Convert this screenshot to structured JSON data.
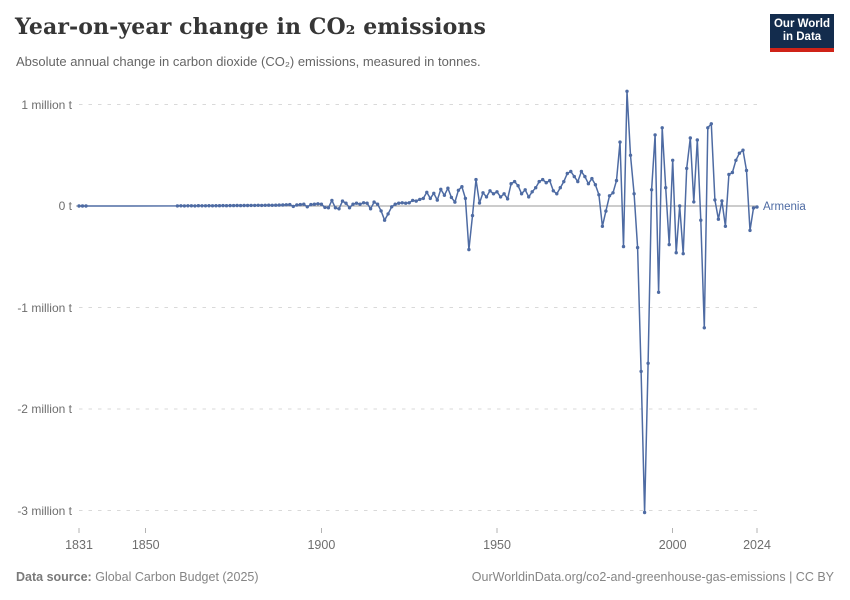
{
  "header": {
    "title": "Year-on-year change in CO₂ emissions",
    "subtitle": "Absolute annual change in carbon dioxide (CO₂) emissions, measured in tonnes.",
    "logo": {
      "line1": "Our World",
      "line2": "in Data",
      "bg_color": "#132C4D",
      "bar_color": "#CF2318"
    }
  },
  "footer": {
    "source_label": "Data source:",
    "source_text": "Global Carbon Budget (2025)",
    "link_text": "OurWorldinData.org/co2-and-greenhouse-gas-emissions | CC BY"
  },
  "chart_data": {
    "type": "line",
    "title": "Year-on-year change in CO₂ emissions",
    "unit": "million tonnes",
    "entity": "Armenia",
    "xlabel": "",
    "ylabel": "",
    "xlim": [
      1831,
      2024
    ],
    "ylim": [
      -3.2,
      1.2
    ],
    "grid": true,
    "legend_position": "end-of-line",
    "colors": {
      "line": "#4e6ba3",
      "gridline": "#d9d9d9",
      "zero_line": "#9a9a9a",
      "tick": "#b3b3b3",
      "axis_text": "#6e6e6e"
    },
    "y_axis": {
      "ticks": [
        {
          "value": 1,
          "label": "1 million t"
        },
        {
          "value": 0,
          "label": "0 t"
        },
        {
          "value": -1,
          "label": "-1 million t"
        },
        {
          "value": -2,
          "label": "-2 million t"
        },
        {
          "value": -3,
          "label": "-3 million t"
        }
      ]
    },
    "x_axis": {
      "ticks": [
        {
          "year": 1831,
          "label": "1831"
        },
        {
          "year": 1850,
          "label": "1850"
        },
        {
          "year": 1900,
          "label": "1900"
        },
        {
          "year": 1950,
          "label": "1950"
        },
        {
          "year": 2000,
          "label": "2000"
        },
        {
          "year": 2024,
          "label": "2024"
        }
      ]
    },
    "series": [
      {
        "name": "Armenia",
        "color": "#4e6ba3",
        "points": [
          [
            1831,
            0.0004
          ],
          [
            1832,
            0.0002
          ],
          [
            1833,
            -0.0003
          ],
          [
            1859,
            0.001
          ],
          [
            1860,
            0.002
          ],
          [
            1861,
            0.001
          ],
          [
            1862,
            0.002
          ],
          [
            1863,
            0.002
          ],
          [
            1864,
            0.001
          ],
          [
            1865,
            0.003
          ],
          [
            1866,
            0.002
          ],
          [
            1867,
            0.002
          ],
          [
            1868,
            0.003
          ],
          [
            1869,
            0.002
          ],
          [
            1870,
            0.003
          ],
          [
            1871,
            0.003
          ],
          [
            1872,
            0.004
          ],
          [
            1873,
            0.003
          ],
          [
            1874,
            0.004
          ],
          [
            1875,
            0.004
          ],
          [
            1876,
            0.005
          ],
          [
            1877,
            0.004
          ],
          [
            1878,
            0.005
          ],
          [
            1879,
            0.005
          ],
          [
            1880,
            0.006
          ],
          [
            1881,
            0.006
          ],
          [
            1882,
            0.007
          ],
          [
            1883,
            0.006
          ],
          [
            1884,
            0.007
          ],
          [
            1885,
            0.008
          ],
          [
            1886,
            0.007
          ],
          [
            1887,
            0.008
          ],
          [
            1888,
            0.009
          ],
          [
            1889,
            0.01
          ],
          [
            1890,
            0.012
          ],
          [
            1891,
            0.014
          ],
          [
            1892,
            -0.004
          ],
          [
            1893,
            0.01
          ],
          [
            1894,
            0.014
          ],
          [
            1895,
            0.018
          ],
          [
            1896,
            -0.008
          ],
          [
            1897,
            0.014
          ],
          [
            1898,
            0.018
          ],
          [
            1899,
            0.022
          ],
          [
            1900,
            0.018
          ],
          [
            1901,
            -0.014
          ],
          [
            1902,
            -0.018
          ],
          [
            1903,
            0.055
          ],
          [
            1904,
            -0.018
          ],
          [
            1905,
            -0.028
          ],
          [
            1906,
            0.048
          ],
          [
            1907,
            0.028
          ],
          [
            1908,
            -0.018
          ],
          [
            1909,
            0.018
          ],
          [
            1910,
            0.028
          ],
          [
            1911,
            0.018
          ],
          [
            1912,
            0.032
          ],
          [
            1913,
            0.028
          ],
          [
            1914,
            -0.028
          ],
          [
            1915,
            0.038
          ],
          [
            1916,
            0.018
          ],
          [
            1917,
            -0.048
          ],
          [
            1918,
            -0.14
          ],
          [
            1919,
            -0.078
          ],
          [
            1920,
            -0.008
          ],
          [
            1921,
            0.018
          ],
          [
            1922,
            0.028
          ],
          [
            1923,
            0.032
          ],
          [
            1924,
            0.028
          ],
          [
            1925,
            0.032
          ],
          [
            1926,
            0.055
          ],
          [
            1927,
            0.048
          ],
          [
            1928,
            0.065
          ],
          [
            1929,
            0.075
          ],
          [
            1930,
            0.135
          ],
          [
            1931,
            0.075
          ],
          [
            1932,
            0.125
          ],
          [
            1933,
            0.058
          ],
          [
            1934,
            0.165
          ],
          [
            1935,
            0.105
          ],
          [
            1936,
            0.175
          ],
          [
            1937,
            0.085
          ],
          [
            1938,
            0.038
          ],
          [
            1939,
            0.155
          ],
          [
            1940,
            0.19
          ],
          [
            1941,
            0.075
          ],
          [
            1942,
            -0.43
          ],
          [
            1943,
            -0.095
          ],
          [
            1944,
            0.26
          ],
          [
            1945,
            0.03
          ],
          [
            1946,
            0.13
          ],
          [
            1947,
            0.09
          ],
          [
            1948,
            0.15
          ],
          [
            1949,
            0.12
          ],
          [
            1950,
            0.14
          ],
          [
            1951,
            0.09
          ],
          [
            1952,
            0.12
          ],
          [
            1953,
            0.07
          ],
          [
            1954,
            0.22
          ],
          [
            1955,
            0.24
          ],
          [
            1956,
            0.2
          ],
          [
            1957,
            0.12
          ],
          [
            1958,
            0.16
          ],
          [
            1959,
            0.09
          ],
          [
            1960,
            0.14
          ],
          [
            1961,
            0.18
          ],
          [
            1962,
            0.24
          ],
          [
            1963,
            0.26
          ],
          [
            1964,
            0.23
          ],
          [
            1965,
            0.25
          ],
          [
            1966,
            0.15
          ],
          [
            1967,
            0.12
          ],
          [
            1968,
            0.18
          ],
          [
            1969,
            0.24
          ],
          [
            1970,
            0.32
          ],
          [
            1971,
            0.34
          ],
          [
            1972,
            0.29
          ],
          [
            1973,
            0.24
          ],
          [
            1974,
            0.34
          ],
          [
            1975,
            0.29
          ],
          [
            1976,
            0.22
          ],
          [
            1977,
            0.27
          ],
          [
            1978,
            0.21
          ],
          [
            1979,
            0.11
          ],
          [
            1980,
            -0.2
          ],
          [
            1981,
            -0.05
          ],
          [
            1982,
            0.1
          ],
          [
            1983,
            0.13
          ],
          [
            1984,
            0.25
          ],
          [
            1985,
            0.63
          ],
          [
            1986,
            -0.4
          ],
          [
            1987,
            1.13
          ],
          [
            1988,
            0.5
          ],
          [
            1989,
            0.12
          ],
          [
            1990,
            -0.41
          ],
          [
            1991,
            -1.63
          ],
          [
            1992,
            -3.02
          ],
          [
            1993,
            -1.55
          ],
          [
            1994,
            0.16
          ],
          [
            1995,
            0.7
          ],
          [
            1996,
            -0.85
          ],
          [
            1997,
            0.77
          ],
          [
            1998,
            0.18
          ],
          [
            1999,
            -0.38
          ],
          [
            2000,
            0.45
          ],
          [
            2001,
            -0.46
          ],
          [
            2002,
            0
          ],
          [
            2003,
            -0.47
          ],
          [
            2004,
            0.37
          ],
          [
            2005,
            0.67
          ],
          [
            2006,
            0.04
          ],
          [
            2007,
            0.65
          ],
          [
            2008,
            -0.14
          ],
          [
            2009,
            -1.2
          ],
          [
            2010,
            0.77
          ],
          [
            2011,
            0.81
          ],
          [
            2012,
            0.06
          ],
          [
            2013,
            -0.13
          ],
          [
            2014,
            0.05
          ],
          [
            2015,
            -0.2
          ],
          [
            2016,
            0.31
          ],
          [
            2017,
            0.33
          ],
          [
            2018,
            0.45
          ],
          [
            2019,
            0.52
          ],
          [
            2020,
            0.55
          ],
          [
            2021,
            0.35
          ],
          [
            2022,
            -0.24
          ],
          [
            2023,
            -0.02
          ],
          [
            2024,
            -0.01
          ]
        ]
      }
    ]
  }
}
